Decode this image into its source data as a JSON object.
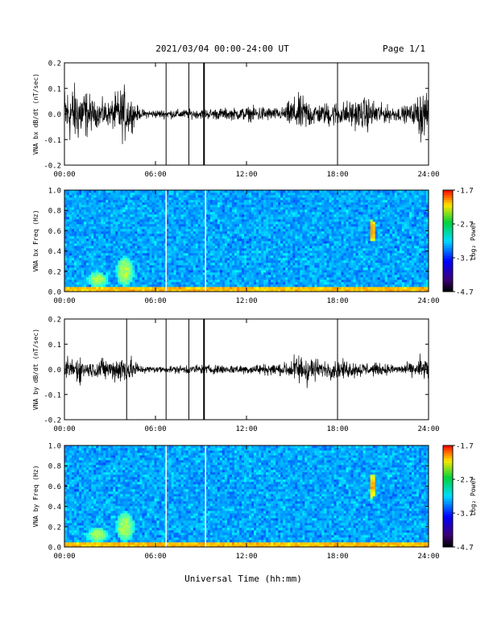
{
  "header": {
    "title": "2021/03/04  00:00-24:00 UT",
    "page": "Page 1/1"
  },
  "footer": {
    "xlabel": "Universal Time (hh:mm)"
  },
  "chart_data": [
    {
      "type": "line",
      "panel": 1,
      "ylabel": "VNA bx dB/dt (nT/sec)",
      "xlim": [
        0,
        24
      ],
      "ylim": [
        -0.2,
        0.2
      ],
      "x_tick_labels": [
        "00:00",
        "06:00",
        "12:00",
        "18:00",
        "24:00"
      ],
      "y_tick_labels": [
        "0.2",
        "0.1",
        "0.0",
        "-0.1",
        "-0.2"
      ],
      "envelope": {
        "x_hours": [
          0,
          0.5,
          1,
          1.5,
          2,
          2.5,
          3,
          3.5,
          4,
          4.5,
          5,
          5.5,
          6,
          7,
          8,
          9,
          10,
          11,
          12,
          13,
          14,
          14.5,
          15,
          15.5,
          16,
          16.5,
          17,
          17.5,
          18,
          19,
          20,
          21,
          22,
          23,
          23.5,
          24
        ],
        "amplitude": [
          0.12,
          0.13,
          0.12,
          0.1,
          0.05,
          0.06,
          0.05,
          0.1,
          0.12,
          0.06,
          0.02,
          0.018,
          0.018,
          0.02,
          0.02,
          0.02,
          0.025,
          0.025,
          0.03,
          0.035,
          0.025,
          0.03,
          0.07,
          0.08,
          0.07,
          0.05,
          0.04,
          0.06,
          0.05,
          0.06,
          0.07,
          0.04,
          0.03,
          0.04,
          0.12,
          0.06
        ]
      },
      "spikes_hours": [
        6.7,
        8.2,
        9.2,
        18.0
      ]
    },
    {
      "type": "heatmap",
      "panel": 2,
      "ylabel": "VNA bx Freq (Hz)",
      "colorbar_label": "Log₂ Power",
      "colorbar_ticks": [
        "-1.7",
        "-2.7",
        "-3.7",
        "-4.7"
      ],
      "colorbar_range": [
        -4.7,
        -1.7
      ],
      "xlim": [
        0,
        24
      ],
      "ylim": [
        0,
        1.0
      ],
      "x_tick_labels": [
        "00:00",
        "06:00",
        "12:00",
        "18:00",
        "24:00"
      ],
      "y_tick_labels": [
        "1.0",
        "0.8",
        "0.6",
        "0.4",
        "0.2",
        "0.0"
      ],
      "features": [
        {
          "kind": "blob",
          "x_hours": 20.3,
          "y_hz": 0.6,
          "width_h": 0.4,
          "height_hz": 0.22,
          "value": -2.4
        },
        {
          "kind": "low_freq_band",
          "y_max_hz": 0.05,
          "value": -2.6
        },
        {
          "kind": "enhancement",
          "x_hours": 2.2,
          "y_hz": 0.12,
          "width_h": 1.4,
          "height_hz": 0.15,
          "value": -3.0
        },
        {
          "kind": "enhancement",
          "x_hours": 4.0,
          "y_hz": 0.2,
          "width_h": 1.2,
          "height_hz": 0.3,
          "value": -3.0
        }
      ],
      "gap_lines_hours": [
        6.7,
        9.3
      ]
    },
    {
      "type": "line",
      "panel": 3,
      "ylabel": "VNA by dB/dt (nT/sec)",
      "xlim": [
        0,
        24
      ],
      "ylim": [
        -0.2,
        0.2
      ],
      "x_tick_labels": [
        "00:00",
        "06:00",
        "12:00",
        "18:00",
        "24:00"
      ],
      "y_tick_labels": [
        "0.2",
        "0.1",
        "0.0",
        "-0.1",
        "-0.2"
      ],
      "envelope": {
        "x_hours": [
          0,
          0.5,
          1,
          1.5,
          2,
          2.5,
          3,
          3.5,
          4,
          4.5,
          5,
          5.5,
          6,
          7,
          8,
          9,
          10,
          11,
          12,
          13,
          14,
          14.5,
          15,
          15.5,
          16,
          16.5,
          17,
          17.5,
          18,
          19,
          20,
          21,
          22,
          23,
          23.5,
          24
        ],
        "amplitude": [
          0.06,
          0.05,
          0.06,
          0.03,
          0.04,
          0.05,
          0.04,
          0.06,
          0.07,
          0.05,
          0.02,
          0.015,
          0.015,
          0.015,
          0.02,
          0.02,
          0.02,
          0.02,
          0.02,
          0.025,
          0.025,
          0.03,
          0.05,
          0.07,
          0.08,
          0.05,
          0.03,
          0.04,
          0.04,
          0.035,
          0.03,
          0.025,
          0.02,
          0.03,
          0.06,
          0.05
        ]
      },
      "spikes_hours": [
        4.1,
        6.7,
        8.2,
        9.2,
        18.0
      ]
    },
    {
      "type": "heatmap",
      "panel": 4,
      "ylabel": "VNA by Freq (Hz)",
      "colorbar_label": "Log₂ Power",
      "colorbar_ticks": [
        "-1.7",
        "-2.7",
        "-3.7",
        "-4.7"
      ],
      "colorbar_range": [
        -4.7,
        -1.7
      ],
      "xlim": [
        0,
        24
      ],
      "ylim": [
        0,
        1.0
      ],
      "x_tick_labels": [
        "00:00",
        "06:00",
        "12:00",
        "18:00",
        "24:00"
      ],
      "y_tick_labels": [
        "1.0",
        "0.8",
        "0.6",
        "0.4",
        "0.2",
        "0.0"
      ],
      "features": [
        {
          "kind": "blob",
          "x_hours": 20.3,
          "y_hz": 0.6,
          "width_h": 0.4,
          "height_hz": 0.25,
          "value": -2.4
        },
        {
          "kind": "low_freq_band",
          "y_max_hz": 0.05,
          "value": -2.6
        },
        {
          "kind": "enhancement",
          "x_hours": 2.2,
          "y_hz": 0.12,
          "width_h": 1.4,
          "height_hz": 0.15,
          "value": -3.0
        },
        {
          "kind": "enhancement",
          "x_hours": 4.0,
          "y_hz": 0.2,
          "width_h": 1.2,
          "height_hz": 0.3,
          "value": -3.0
        }
      ],
      "gap_lines_hours": [
        6.7,
        9.3
      ]
    }
  ]
}
